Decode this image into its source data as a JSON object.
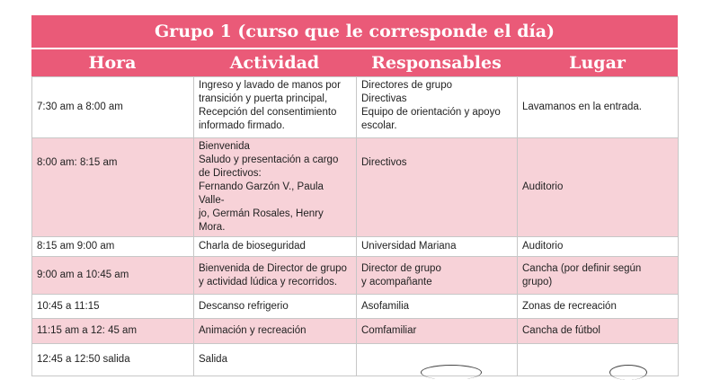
{
  "title": "Grupo 1 (curso que le corresponde el día)",
  "headers": [
    "Hora",
    "Actividad",
    "Responsables",
    "Lugar"
  ],
  "rows": [
    {
      "hora": "7:30 am a 8:00 am",
      "actividad": "Ingreso y lavado de manos por\ntransición y puerta principal,\nRecepción del consentimiento\ninformado firmado.",
      "responsables": "Directores de grupo\nDirectivas\nEquipo de orientación y apoyo\nescolar.",
      "lugar": "Lavamanos en la entrada."
    },
    {
      "hora": "8:00 am: 8:15 am",
      "actividad": "Bienvenida\nSaludo y presentación a cargo\nde Directivos:\nFernando Garzón V., Paula Valle-\njo, Germán Rosales, Henry Mora.",
      "responsables": "Directivos",
      "lugar": "Auditorio"
    },
    {
      "hora": "8:15 am 9:00 am",
      "actividad": "Charla de bioseguridad",
      "responsables": "Universidad Mariana",
      "lugar": "Auditorio"
    },
    {
      "hora": "9:00 am a 10:45 am",
      "actividad": "Bienvenida de Director de grupo\ny actividad lúdica y recorridos.",
      "responsables": "Director de grupo\ny acompañante",
      "lugar": "Cancha (por definir según\ngrupo)"
    },
    {
      "hora": "10:45 a 11:15",
      "actividad": "Descanso refrigerio",
      "responsables": "Asofamilia",
      "lugar": "Zonas de recreación"
    },
    {
      "hora": "11:15 am a 12: 45 am",
      "actividad": "Animación y recreación",
      "responsables": "Comfamiliar",
      "lugar": "Cancha de fútbol"
    },
    {
      "hora": "12:45 a 12:50 salida",
      "actividad": "Salida",
      "responsables": "",
      "lugar": ""
    }
  ]
}
